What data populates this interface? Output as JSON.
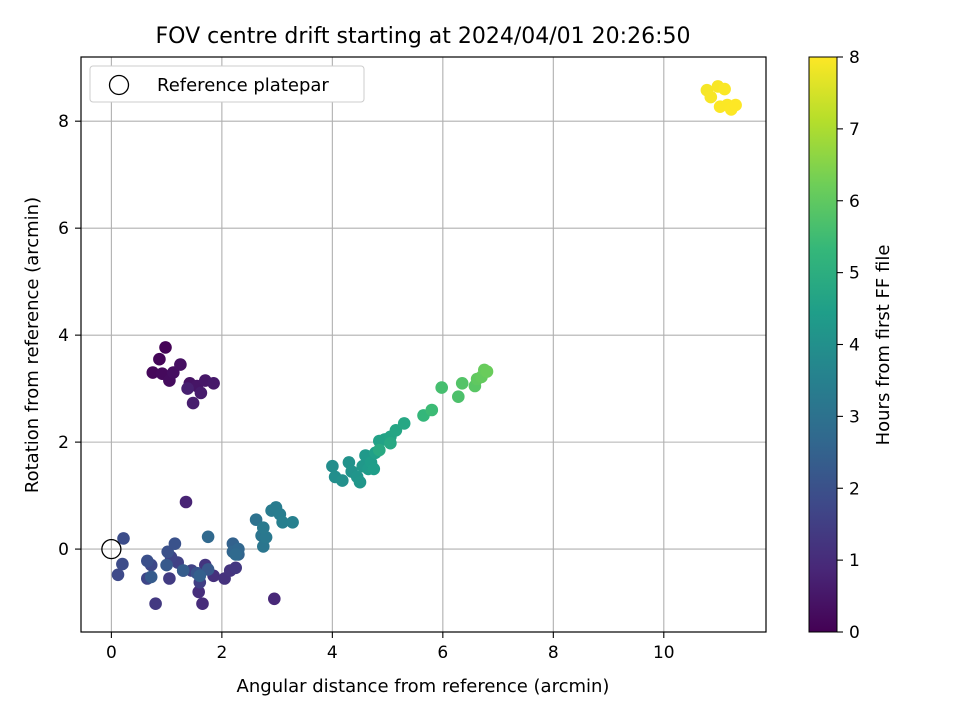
{
  "chart_data": {
    "type": "scatter",
    "title": "FOV centre drift starting at 2024/04/01 20:26:50",
    "xlabel": "Angular distance from reference (arcmin)",
    "ylabel": "Rotation from reference (arcmin)",
    "xlim": [
      -0.55,
      11.85
    ],
    "ylim": [
      -1.55,
      9.2
    ],
    "xticks": [
      0,
      2,
      4,
      6,
      8,
      10
    ],
    "yticks": [
      0,
      2,
      4,
      6,
      8
    ],
    "grid": true,
    "legend": {
      "placement": "top-left",
      "entries": [
        "Reference platepar"
      ]
    },
    "reference_point": {
      "label": "Reference platepar",
      "x": 0,
      "y": 0
    },
    "colorbar": {
      "label": "Hours from first FF file",
      "colormap": "viridis",
      "range": [
        0,
        8
      ],
      "ticks": [
        0,
        1,
        2,
        3,
        4,
        5,
        6,
        7,
        8
      ],
      "colors": [
        "#440154",
        "#482878",
        "#3e4989",
        "#31688e",
        "#26828e",
        "#1f9e89",
        "#35b779",
        "#6ece58",
        "#b5de2b",
        "#fde725"
      ]
    },
    "series": [
      {
        "points": [
          [
            0.98,
            3.77,
            0.05
          ],
          [
            0.87,
            3.55,
            0.1
          ],
          [
            0.75,
            3.3,
            0.15
          ],
          [
            0.92,
            3.28,
            0.2
          ],
          [
            1.05,
            3.15,
            0.25
          ],
          [
            1.12,
            3.3,
            0.3
          ],
          [
            1.25,
            3.45,
            0.35
          ],
          [
            1.42,
            3.1,
            0.4
          ],
          [
            1.55,
            3.05,
            0.45
          ],
          [
            1.7,
            3.15,
            0.5
          ],
          [
            1.85,
            3.1,
            0.55
          ],
          [
            1.62,
            2.92,
            0.6
          ],
          [
            1.48,
            2.73,
            0.65
          ],
          [
            1.38,
            3.0,
            0.7
          ],
          [
            1.35,
            0.88,
            0.8
          ],
          [
            2.95,
            -0.93,
            0.9
          ],
          [
            1.65,
            -1.02,
            1.0
          ],
          [
            1.58,
            -0.8,
            1.05
          ],
          [
            1.85,
            -0.5,
            1.1
          ],
          [
            2.05,
            -0.55,
            1.15
          ],
          [
            2.15,
            -0.4,
            1.2
          ],
          [
            1.7,
            -0.3,
            1.25
          ],
          [
            2.25,
            -0.35,
            1.3
          ],
          [
            0.8,
            -1.02,
            1.35
          ],
          [
            1.05,
            -0.55,
            1.4
          ],
          [
            1.3,
            -0.4,
            1.45
          ],
          [
            1.6,
            -0.62,
            1.5
          ],
          [
            1.2,
            -0.25,
            1.55
          ],
          [
            1.45,
            -0.4,
            1.6
          ],
          [
            1.08,
            -0.15,
            1.65
          ],
          [
            0.65,
            -0.55,
            1.7
          ],
          [
            0.72,
            -0.3,
            1.75
          ],
          [
            0.12,
            -0.48,
            1.8
          ],
          [
            0.2,
            -0.28,
            1.85
          ],
          [
            0.22,
            0.2,
            1.9
          ],
          [
            0.65,
            -0.22,
            1.95
          ],
          [
            1.02,
            -0.05,
            2.0
          ],
          [
            1.15,
            0.1,
            2.05
          ],
          [
            1.55,
            -0.45,
            2.1
          ],
          [
            1.75,
            -0.38,
            2.2
          ],
          [
            1.0,
            -0.3,
            2.25
          ],
          [
            0.72,
            -0.52,
            2.3
          ],
          [
            1.3,
            -0.4,
            2.35
          ],
          [
            1.6,
            -0.5,
            2.45
          ],
          [
            2.2,
            0.1,
            2.5
          ],
          [
            2.3,
            -0.1,
            2.55
          ],
          [
            2.2,
            -0.05,
            2.6
          ],
          [
            2.3,
            0.0,
            2.65
          ],
          [
            1.75,
            0.23,
            2.7
          ],
          [
            2.25,
            -0.1,
            2.75
          ],
          [
            2.62,
            0.55,
            3.0
          ],
          [
            2.72,
            0.25,
            3.1
          ],
          [
            2.75,
            0.05,
            3.15
          ],
          [
            2.8,
            0.22,
            3.2
          ],
          [
            2.75,
            0.4,
            3.25
          ],
          [
            2.9,
            0.72,
            3.3
          ],
          [
            2.98,
            0.78,
            3.35
          ],
          [
            3.05,
            0.65,
            3.4
          ],
          [
            3.1,
            0.5,
            3.45
          ],
          [
            3.28,
            0.5,
            3.5
          ],
          [
            4.0,
            1.55,
            3.9
          ],
          [
            4.05,
            1.35,
            3.95
          ],
          [
            4.18,
            1.28,
            4.0
          ],
          [
            4.3,
            1.62,
            4.05
          ],
          [
            4.35,
            1.45,
            4.1
          ],
          [
            4.45,
            1.35,
            4.15
          ],
          [
            4.5,
            1.25,
            4.2
          ],
          [
            4.55,
            1.55,
            4.25
          ],
          [
            4.6,
            1.75,
            4.3
          ],
          [
            4.65,
            1.5,
            4.35
          ],
          [
            4.7,
            1.62,
            4.4
          ],
          [
            4.75,
            1.5,
            4.45
          ],
          [
            4.78,
            1.8,
            4.5
          ],
          [
            4.85,
            2.02,
            4.55
          ],
          [
            4.95,
            2.05,
            4.6
          ],
          [
            5.05,
            2.1,
            4.65
          ],
          [
            5.15,
            2.22,
            4.7
          ],
          [
            5.3,
            2.35,
            4.75
          ],
          [
            5.05,
            1.98,
            4.8
          ],
          [
            4.85,
            1.85,
            4.85
          ],
          [
            5.65,
            2.5,
            5.3
          ],
          [
            5.8,
            2.6,
            5.45
          ],
          [
            5.98,
            3.02,
            5.6
          ],
          [
            6.28,
            2.85,
            5.7
          ],
          [
            6.35,
            3.1,
            5.8
          ],
          [
            6.58,
            3.05,
            5.9
          ],
          [
            6.62,
            3.18,
            6.0
          ],
          [
            6.7,
            3.22,
            6.05
          ],
          [
            6.75,
            3.35,
            6.1
          ],
          [
            6.8,
            3.32,
            6.15
          ],
          [
            10.78,
            8.58,
            7.9
          ],
          [
            10.85,
            8.45,
            7.92
          ],
          [
            10.98,
            8.65,
            7.94
          ],
          [
            11.1,
            8.6,
            7.96
          ],
          [
            11.02,
            8.27,
            7.97
          ],
          [
            11.15,
            8.3,
            7.98
          ],
          [
            11.22,
            8.22,
            7.99
          ],
          [
            11.3,
            8.3,
            8.0
          ]
        ]
      }
    ]
  }
}
